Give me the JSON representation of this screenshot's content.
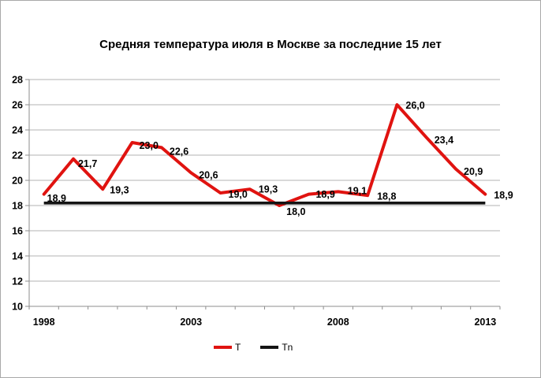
{
  "window": {
    "background": "#ffffff",
    "border_color": "#a9a9a9"
  },
  "chart_data": {
    "type": "line",
    "title": "Средняя температура июля в Москве за последние 15 лет",
    "x": [
      1998,
      1999,
      2000,
      2001,
      2002,
      2003,
      2004,
      2005,
      2006,
      2007,
      2008,
      2009,
      2010,
      2011,
      2012,
      2013
    ],
    "xlabel": "",
    "ylabel": "",
    "ylim": [
      10,
      28
    ],
    "ytick_step": 2,
    "x_axis_labeled_ticks": [
      1998,
      2003,
      2008,
      2013
    ],
    "grid": "horizontal",
    "legend_position": "bottom",
    "decimal_separator": ",",
    "colors": {
      "gridline": "#b3b3b3",
      "axis": "#8e8e8e",
      "text": "#000000"
    },
    "series": [
      {
        "name": "T",
        "color": "#e01310",
        "data_labels": true,
        "values": [
          18.9,
          21.7,
          19.3,
          23.0,
          22.6,
          20.6,
          19.0,
          19.3,
          18.0,
          18.9,
          19.1,
          18.8,
          26.0,
          23.4,
          20.9,
          18.9
        ]
      },
      {
        "name": "Tn",
        "color": "#141414",
        "data_labels": false,
        "style": "constant-line",
        "values": [
          18.2,
          18.2,
          18.2,
          18.2,
          18.2,
          18.2,
          18.2,
          18.2,
          18.2,
          18.2,
          18.2,
          18.2,
          18.2,
          18.2,
          18.2,
          18.2
        ]
      }
    ]
  }
}
